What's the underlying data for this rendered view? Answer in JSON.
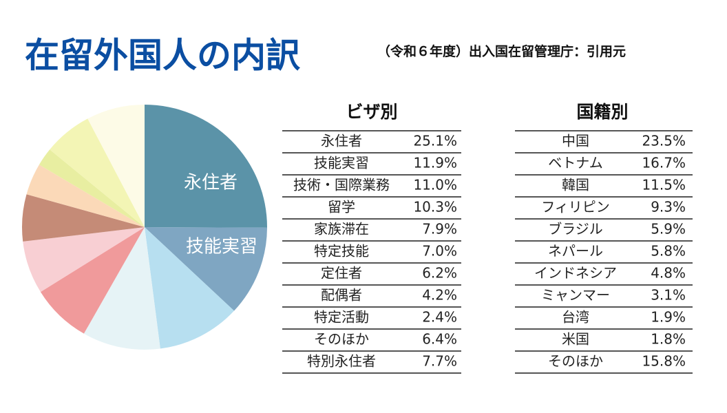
{
  "title": "在留外国人の内訳",
  "subtitle": "（令和６年度）出入国在留管理庁：引用元",
  "chart_data": {
    "type": "pie",
    "title": "ビザ別",
    "categories": [
      "永住者",
      "技能実習",
      "技術・国際業務",
      "留学",
      "家族滞在",
      "特定技能",
      "定住者",
      "配偶者",
      "特定活動",
      "そのほか",
      "特別永住者"
    ],
    "values": [
      25.1,
      11.9,
      11.0,
      10.3,
      7.9,
      7.0,
      6.2,
      4.2,
      2.4,
      6.4,
      7.7
    ],
    "value_labels": [
      "25.1%",
      "11.9%",
      "11.0%",
      "10.3%",
      "7.9%",
      "7.0%",
      "6.2%",
      "4.2%",
      "2.4%",
      "6.4%",
      "7.7%"
    ],
    "colors": [
      "#5b93a8",
      "#7fa6c2",
      "#b7dff0",
      "#e6f3f6",
      "#f09a9b",
      "#f8cfd3",
      "#c58b77",
      "#fbd9b8",
      "#e8eea1",
      "#f3f5b5",
      "#fdfbe7"
    ]
  },
  "nationality_table": {
    "title": "国籍別",
    "rows": [
      [
        "中国",
        "23.5%"
      ],
      [
        "ベトナム",
        "16.7%"
      ],
      [
        "韓国",
        "11.5%"
      ],
      [
        "フィリピン",
        "9.3%"
      ],
      [
        "ブラジル",
        "5.9%"
      ],
      [
        "ネパール",
        "5.8%"
      ],
      [
        "インドネシア",
        "4.8%"
      ],
      [
        "ミャンマー",
        "3.1%"
      ],
      [
        "台湾",
        "1.9%"
      ],
      [
        "米国",
        "1.8%"
      ],
      [
        "そのほか",
        "15.8%"
      ]
    ]
  }
}
